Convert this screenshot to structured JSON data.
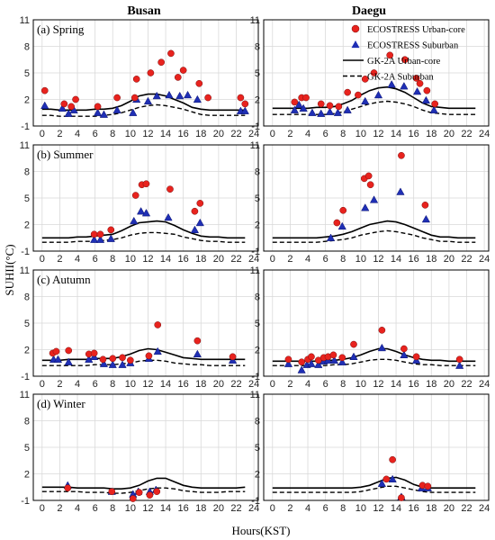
{
  "figure": {
    "columns": [
      "Busan",
      "Daegu"
    ],
    "ylabel": "SUHII(°C)",
    "xlabel": "Hours(KST)"
  },
  "legend": [
    {
      "label": "ECOSTRESS Urban-core",
      "marker": "circle",
      "color": "#e8231e"
    },
    {
      "label": "ECOSTRESS Suburban",
      "marker": "triangle",
      "color": "#1f2fb5"
    },
    {
      "label": "GK-2A Urban-core",
      "line": "solid",
      "color": "#000000"
    },
    {
      "label": "GK-2A Suburban",
      "line": "dashed",
      "color": "#000000"
    }
  ],
  "chart_data": {
    "type": "scatter",
    "x_ticks": [
      0,
      2,
      4,
      6,
      8,
      10,
      12,
      14,
      16,
      18,
      20,
      22,
      24
    ],
    "y_ticks": [
      -1,
      2,
      5,
      8,
      11
    ],
    "xlim": [
      -1,
      24.5
    ],
    "ylim": [
      -1,
      11
    ],
    "grid": true,
    "legend_position": "top-right of Daegu Spring panel",
    "panels": [
      {
        "season": "(a) Spring",
        "city": "Busan",
        "urban_pts": [
          [
            0.3,
            3.0
          ],
          [
            2.5,
            1.5
          ],
          [
            3.3,
            1.2
          ],
          [
            3.8,
            2.0
          ],
          [
            6.3,
            1.2
          ],
          [
            8.5,
            2.2
          ],
          [
            10.5,
            2.2
          ],
          [
            10.7,
            4.3
          ],
          [
            12.3,
            5.0
          ],
          [
            13.5,
            6.2
          ],
          [
            14.6,
            7.2
          ],
          [
            15.4,
            4.5
          ],
          [
            16,
            5.3
          ],
          [
            17.8,
            3.8
          ],
          [
            18.8,
            2.2
          ],
          [
            22.5,
            2.2
          ],
          [
            23,
            1.5
          ]
        ],
        "sub_pts": [
          [
            0.3,
            1.3
          ],
          [
            2.3,
            1.0
          ],
          [
            3.0,
            0.4
          ],
          [
            3.6,
            0.8
          ],
          [
            6.3,
            0.5
          ],
          [
            7.0,
            0.3
          ],
          [
            8.5,
            0.8
          ],
          [
            10.3,
            0.5
          ],
          [
            10.7,
            2.0
          ],
          [
            12.0,
            1.8
          ],
          [
            13.0,
            2.4
          ],
          [
            14.4,
            2.5
          ],
          [
            15.6,
            2.4
          ],
          [
            16.5,
            2.5
          ],
          [
            17.6,
            2.0
          ],
          [
            22.5,
            0.7
          ],
          [
            23,
            0.7
          ]
        ],
        "urban_line": [
          0.9,
          0.9,
          0.8,
          0.8,
          0.8,
          0.8,
          0.9,
          0.9,
          1.0,
          1.3,
          1.8,
          2.4,
          2.6,
          2.6,
          2.4,
          2.0,
          1.6,
          1.1,
          0.9,
          0.8,
          0.8,
          0.8,
          0.8,
          0.8
        ],
        "sub_line": [
          0.2,
          0.2,
          0.1,
          0.1,
          0.1,
          0.1,
          0.1,
          0.2,
          0.3,
          0.5,
          0.8,
          1.1,
          1.3,
          1.4,
          1.3,
          1.1,
          0.9,
          0.6,
          0.3,
          0.2,
          0.2,
          0.2,
          0.2,
          0.2
        ]
      },
      {
        "season": "",
        "city": "Daegu",
        "urban_pts": [
          [
            2.5,
            1.7
          ],
          [
            3.3,
            2.2
          ],
          [
            3.8,
            2.2
          ],
          [
            5.5,
            1.5
          ],
          [
            6.5,
            1.3
          ],
          [
            7.5,
            1.2
          ],
          [
            8.5,
            2.8
          ],
          [
            9.7,
            2.5
          ],
          [
            10.5,
            4.3
          ],
          [
            11.5,
            5.0
          ],
          [
            13.3,
            7.0
          ],
          [
            15.0,
            6.5
          ],
          [
            16.3,
            4.4
          ],
          [
            16.7,
            3.8
          ],
          [
            17.5,
            3.0
          ],
          [
            18.4,
            1.5
          ]
        ],
        "sub_pts": [
          [
            2.5,
            0.8
          ],
          [
            3.0,
            1.4
          ],
          [
            3.5,
            1.0
          ],
          [
            4.5,
            0.5
          ],
          [
            5.5,
            0.4
          ],
          [
            6.5,
            0.6
          ],
          [
            7.4,
            0.5
          ],
          [
            8.5,
            0.8
          ],
          [
            10.5,
            1.8
          ],
          [
            12.0,
            2.5
          ],
          [
            13.5,
            3.7
          ],
          [
            14.9,
            3.5
          ],
          [
            16.4,
            2.9
          ],
          [
            17.4,
            1.9
          ],
          [
            18.3,
            0.8
          ]
        ],
        "urban_line": [
          1.0,
          1.0,
          1.0,
          1.0,
          1.0,
          1.1,
          1.1,
          1.2,
          1.5,
          1.9,
          2.5,
          3.0,
          3.3,
          3.4,
          3.2,
          2.8,
          2.2,
          1.6,
          1.2,
          1.1,
          1.0,
          1.0,
          1.0,
          1.0
        ],
        "sub_line": [
          0.3,
          0.3,
          0.3,
          0.3,
          0.3,
          0.3,
          0.3,
          0.4,
          0.6,
          0.9,
          1.2,
          1.5,
          1.7,
          1.8,
          1.7,
          1.5,
          1.2,
          0.8,
          0.5,
          0.4,
          0.3,
          0.3,
          0.3,
          0.3
        ]
      },
      {
        "season": "(b) Summer",
        "city": "Busan",
        "urban_pts": [
          [
            5.9,
            0.9
          ],
          [
            6.6,
            0.9
          ],
          [
            7.8,
            1.4
          ],
          [
            10.6,
            5.3
          ],
          [
            11.3,
            6.5
          ],
          [
            11.8,
            6.6
          ],
          [
            14.5,
            6.0
          ],
          [
            17.3,
            3.5
          ],
          [
            17.9,
            4.4
          ]
        ],
        "sub_pts": [
          [
            5.9,
            0.3
          ],
          [
            6.6,
            0.3
          ],
          [
            7.8,
            0.4
          ],
          [
            10.4,
            2.4
          ],
          [
            11.2,
            3.5
          ],
          [
            11.8,
            3.3
          ],
          [
            14.3,
            2.8
          ],
          [
            17.3,
            1.4
          ],
          [
            17.9,
            2.2
          ]
        ],
        "urban_line": [
          0.5,
          0.5,
          0.5,
          0.5,
          0.6,
          0.6,
          0.7,
          0.8,
          0.9,
          1.3,
          1.8,
          2.2,
          2.3,
          2.4,
          2.3,
          1.9,
          1.4,
          1.0,
          0.7,
          0.6,
          0.6,
          0.5,
          0.5,
          0.5
        ],
        "sub_line": [
          0.0,
          0.0,
          0.0,
          0.0,
          0.1,
          0.1,
          0.1,
          0.2,
          0.3,
          0.5,
          0.8,
          1.0,
          1.1,
          1.1,
          1.0,
          0.9,
          0.6,
          0.4,
          0.2,
          0.1,
          0.1,
          0.0,
          0.0,
          0.0
        ]
      },
      {
        "season": "",
        "city": "Daegu",
        "urban_pts": [
          [
            7.3,
            2.2
          ],
          [
            8.0,
            3.6
          ],
          [
            10.4,
            7.2
          ],
          [
            10.9,
            7.5
          ],
          [
            11.1,
            6.5
          ],
          [
            14.6,
            9.8
          ],
          [
            17.3,
            4.2
          ]
        ],
        "sub_pts": [
          [
            6.6,
            0.5
          ],
          [
            7.9,
            1.8
          ],
          [
            10.5,
            3.9
          ],
          [
            11.5,
            4.8
          ],
          [
            14.5,
            5.7
          ],
          [
            17.4,
            2.6
          ]
        ],
        "urban_line": [
          0.5,
          0.5,
          0.5,
          0.5,
          0.5,
          0.5,
          0.6,
          0.7,
          0.9,
          1.2,
          1.6,
          2.0,
          2.2,
          2.4,
          2.3,
          2.0,
          1.6,
          1.2,
          0.8,
          0.6,
          0.6,
          0.5,
          0.5,
          0.5
        ],
        "sub_line": [
          0.0,
          0.0,
          0.0,
          0.0,
          0.0,
          0.0,
          0.1,
          0.2,
          0.3,
          0.5,
          0.8,
          1.0,
          1.2,
          1.3,
          1.2,
          1.0,
          0.8,
          0.5,
          0.3,
          0.1,
          0.1,
          0.0,
          0.0,
          0.0
        ]
      },
      {
        "season": "(c) Autumn",
        "city": "Busan",
        "urban_pts": [
          [
            1.2,
            1.6
          ],
          [
            1.6,
            1.8
          ],
          [
            3.0,
            1.9
          ],
          [
            5.3,
            1.5
          ],
          [
            5.9,
            1.6
          ],
          [
            6.9,
            0.9
          ],
          [
            8.0,
            1.0
          ],
          [
            9.1,
            1.1
          ],
          [
            10.0,
            0.8
          ],
          [
            12.1,
            1.3
          ],
          [
            13.1,
            4.8
          ],
          [
            17.6,
            3.0
          ],
          [
            21.6,
            1.2
          ]
        ],
        "sub_pts": [
          [
            1.3,
            0.9
          ],
          [
            1.8,
            0.9
          ],
          [
            3.0,
            0.6
          ],
          [
            5.3,
            0.9
          ],
          [
            5.9,
            1.2
          ],
          [
            7.0,
            0.4
          ],
          [
            8.0,
            0.3
          ],
          [
            9.1,
            0.3
          ],
          [
            10.0,
            0.5
          ],
          [
            12.1,
            1.0
          ],
          [
            13.1,
            1.8
          ],
          [
            17.6,
            1.5
          ],
          [
            21.6,
            0.8
          ]
        ],
        "urban_line": [
          0.8,
          0.8,
          0.8,
          0.9,
          0.9,
          0.9,
          1.0,
          1.0,
          1.0,
          1.2,
          1.5,
          1.9,
          2.1,
          2.0,
          1.7,
          1.4,
          1.1,
          1.0,
          0.9,
          0.9,
          0.9,
          0.9,
          0.9,
          0.9
        ],
        "sub_line": [
          0.2,
          0.2,
          0.2,
          0.2,
          0.2,
          0.2,
          0.3,
          0.3,
          0.3,
          0.4,
          0.5,
          0.7,
          0.8,
          0.8,
          0.7,
          0.5,
          0.4,
          0.3,
          0.3,
          0.2,
          0.2,
          0.2,
          0.2,
          0.2
        ]
      },
      {
        "season": "",
        "city": "Daegu",
        "urban_pts": [
          [
            1.8,
            0.9
          ],
          [
            3.3,
            0.6
          ],
          [
            4.0,
            0.9
          ],
          [
            4.4,
            1.2
          ],
          [
            5.2,
            0.8
          ],
          [
            5.8,
            1.1
          ],
          [
            6.3,
            1.2
          ],
          [
            6.9,
            1.4
          ],
          [
            7.9,
            1.1
          ],
          [
            9.2,
            2.6
          ],
          [
            12.4,
            4.2
          ],
          [
            14.9,
            2.1
          ],
          [
            16.3,
            1.2
          ],
          [
            21.2,
            0.9
          ]
        ],
        "sub_pts": [
          [
            1.8,
            0.4
          ],
          [
            3.3,
            -0.3
          ],
          [
            3.9,
            0.3
          ],
          [
            4.4,
            0.4
          ],
          [
            5.2,
            0.3
          ],
          [
            5.8,
            0.7
          ],
          [
            6.3,
            0.8
          ],
          [
            7.0,
            0.8
          ],
          [
            7.9,
            0.6
          ],
          [
            9.2,
            1.2
          ],
          [
            12.4,
            2.2
          ],
          [
            14.9,
            1.4
          ],
          [
            16.3,
            0.8
          ],
          [
            21.2,
            0.2
          ]
        ],
        "urban_line": [
          0.7,
          0.7,
          0.7,
          0.7,
          0.7,
          0.7,
          0.8,
          0.8,
          0.9,
          1.1,
          1.4,
          1.8,
          2.1,
          2.1,
          1.8,
          1.4,
          1.1,
          0.9,
          0.8,
          0.8,
          0.7,
          0.7,
          0.7,
          0.7
        ],
        "sub_line": [
          0.2,
          0.2,
          0.2,
          0.2,
          0.2,
          0.2,
          0.2,
          0.3,
          0.3,
          0.4,
          0.6,
          0.8,
          0.9,
          0.9,
          0.8,
          0.6,
          0.4,
          0.3,
          0.3,
          0.2,
          0.2,
          0.2,
          0.2,
          0.2
        ]
      },
      {
        "season": "(d) Winter",
        "city": "Busan",
        "urban_pts": [
          [
            2.9,
            0.4
          ],
          [
            7.9,
            0.0
          ],
          [
            10.3,
            -0.8
          ],
          [
            11.0,
            -0.1
          ],
          [
            12.2,
            -0.4
          ],
          [
            13.0,
            0.0
          ]
        ],
        "sub_pts": [
          [
            2.9,
            0.7
          ],
          [
            7.9,
            0.0
          ],
          [
            10.3,
            -0.3
          ],
          [
            10.9,
            0.0
          ],
          [
            12.2,
            0.0
          ],
          [
            12.9,
            0.2
          ]
        ],
        "urban_line": [
          0.5,
          0.5,
          0.5,
          0.5,
          0.4,
          0.4,
          0.4,
          0.4,
          0.3,
          0.3,
          0.4,
          0.7,
          1.2,
          1.5,
          1.5,
          1.1,
          0.7,
          0.5,
          0.4,
          0.4,
          0.4,
          0.4,
          0.4,
          0.5
        ],
        "sub_line": [
          0.0,
          0.0,
          0.0,
          0.0,
          0.0,
          -0.1,
          -0.1,
          -0.1,
          -0.2,
          -0.2,
          -0.1,
          0.1,
          0.3,
          0.4,
          0.4,
          0.3,
          0.1,
          0.0,
          -0.1,
          -0.1,
          -0.1,
          0.0,
          0.0,
          0.0
        ]
      },
      {
        "season": "",
        "city": "Daegu",
        "urban_pts": [
          [
            12.9,
            1.4
          ],
          [
            13.6,
            3.6
          ],
          [
            14.6,
            -0.7
          ],
          [
            17.0,
            0.7
          ],
          [
            17.6,
            0.6
          ]
        ],
        "sub_pts": [
          [
            12.4,
            0.9
          ],
          [
            13.6,
            1.4
          ],
          [
            14.6,
            -0.6
          ],
          [
            16.9,
            0.4
          ],
          [
            17.6,
            0.4
          ]
        ],
        "urban_line": [
          0.4,
          0.4,
          0.4,
          0.4,
          0.4,
          0.4,
          0.4,
          0.4,
          0.4,
          0.4,
          0.5,
          0.7,
          1.1,
          1.5,
          1.6,
          1.3,
          0.8,
          0.5,
          0.4,
          0.4,
          0.4,
          0.4,
          0.4,
          0.4
        ],
        "sub_line": [
          -0.1,
          -0.1,
          -0.1,
          -0.1,
          -0.1,
          -0.1,
          -0.1,
          -0.1,
          -0.1,
          -0.1,
          0.0,
          0.2,
          0.4,
          0.6,
          0.6,
          0.4,
          0.2,
          0.0,
          -0.1,
          -0.1,
          -0.1,
          -0.1,
          -0.1,
          -0.1
        ]
      }
    ]
  }
}
